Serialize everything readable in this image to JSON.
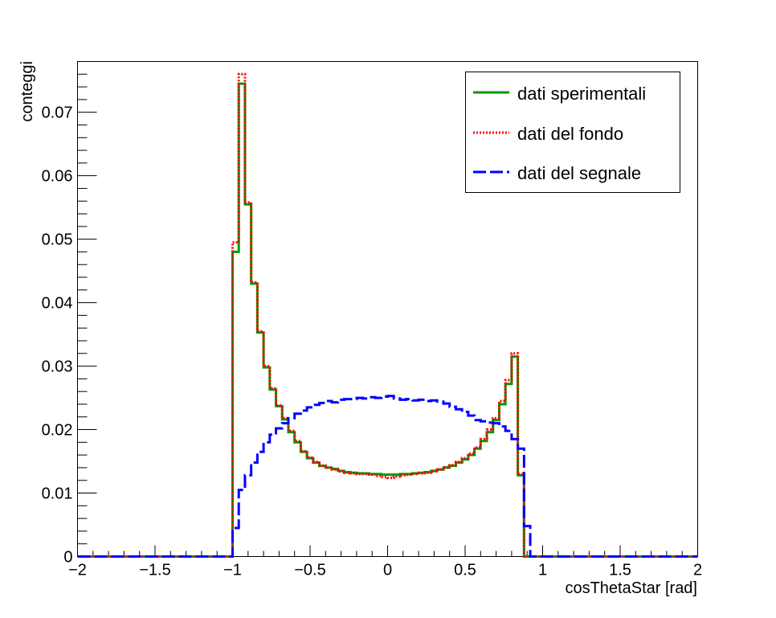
{
  "chart_data": {
    "type": "line",
    "xlabel": "cosThetaStar [rad]",
    "ylabel": "conteggi",
    "xlim": [
      -2,
      2
    ],
    "ylim": [
      0,
      0.078
    ],
    "x_ticks": [
      "-2",
      "-1.5",
      "-1",
      "-0.5",
      "0",
      "0.5",
      "1",
      "1.5",
      "2"
    ],
    "y_ticks": [
      "0",
      "0.01",
      "0.02",
      "0.03",
      "0.04",
      "0.05",
      "0.06",
      "0.07"
    ],
    "legend_position": "top-right",
    "grid": false,
    "bin_edges": [
      -1.0,
      -0.96,
      -0.92,
      -0.88,
      -0.84,
      -0.8,
      -0.76,
      -0.72,
      -0.68,
      -0.64,
      -0.6,
      -0.56,
      -0.52,
      -0.48,
      -0.44,
      -0.4,
      -0.36,
      -0.32,
      -0.28,
      -0.24,
      -0.2,
      -0.16,
      -0.12,
      -0.08,
      -0.04,
      0.0,
      0.04,
      0.08,
      0.12,
      0.16,
      0.2,
      0.24,
      0.28,
      0.32,
      0.36,
      0.4,
      0.44,
      0.48,
      0.52,
      0.56,
      0.6,
      0.64,
      0.68,
      0.72,
      0.76,
      0.8,
      0.84,
      0.88,
      0.92,
      0.96
    ],
    "series": [
      {
        "name": "dati sperimentali",
        "color": "#009900",
        "style": "solid",
        "values": [
          0.048,
          0.0745,
          0.0555,
          0.043,
          0.0353,
          0.0298,
          0.0263,
          0.0237,
          0.0216,
          0.0196,
          0.018,
          0.0165,
          0.0155,
          0.0148,
          0.0143,
          0.014,
          0.0138,
          0.0135,
          0.0133,
          0.0132,
          0.0131,
          0.0131,
          0.013,
          0.013,
          0.0129,
          0.0129,
          0.0129,
          0.013,
          0.013,
          0.0131,
          0.0132,
          0.0133,
          0.0135,
          0.0137,
          0.014,
          0.0143,
          0.0148,
          0.0153,
          0.016,
          0.017,
          0.0182,
          0.0196,
          0.0215,
          0.024,
          0.0272,
          0.0315,
          0.0128,
          0.0,
          0.0,
          0.0
        ]
      },
      {
        "name": "dati del fondo",
        "color": "#ff0000",
        "style": "dotted",
        "values": [
          0.0495,
          0.076,
          0.0558,
          0.0432,
          0.0355,
          0.03,
          0.0265,
          0.0238,
          0.0218,
          0.0198,
          0.0182,
          0.0166,
          0.0156,
          0.0149,
          0.0143,
          0.014,
          0.0137,
          0.0134,
          0.0132,
          0.0131,
          0.013,
          0.013,
          0.0129,
          0.0127,
          0.0125,
          0.0124,
          0.0126,
          0.0128,
          0.0129,
          0.013,
          0.0131,
          0.0132,
          0.0134,
          0.0137,
          0.0141,
          0.0144,
          0.0149,
          0.0155,
          0.0162,
          0.0172,
          0.0185,
          0.02,
          0.0218,
          0.0245,
          0.0278,
          0.032,
          0.013,
          0.0,
          0.0,
          0.0
        ]
      },
      {
        "name": "dati del segnale",
        "color": "#0000ff",
        "style": "dashed",
        "values": [
          0.0045,
          0.0105,
          0.0128,
          0.0148,
          0.0165,
          0.018,
          0.0192,
          0.0202,
          0.021,
          0.0218,
          0.0225,
          0.023,
          0.0235,
          0.0239,
          0.0242,
          0.0245,
          0.0243,
          0.0247,
          0.0248,
          0.0248,
          0.025,
          0.0249,
          0.0251,
          0.025,
          0.0252,
          0.0253,
          0.0249,
          0.0247,
          0.0248,
          0.0246,
          0.0247,
          0.0245,
          0.0246,
          0.0244,
          0.0241,
          0.0236,
          0.0232,
          0.0228,
          0.0222,
          0.0215,
          0.0213,
          0.0211,
          0.021,
          0.0205,
          0.0198,
          0.0185,
          0.017,
          0.0048,
          0.0,
          0.0
        ]
      }
    ]
  }
}
